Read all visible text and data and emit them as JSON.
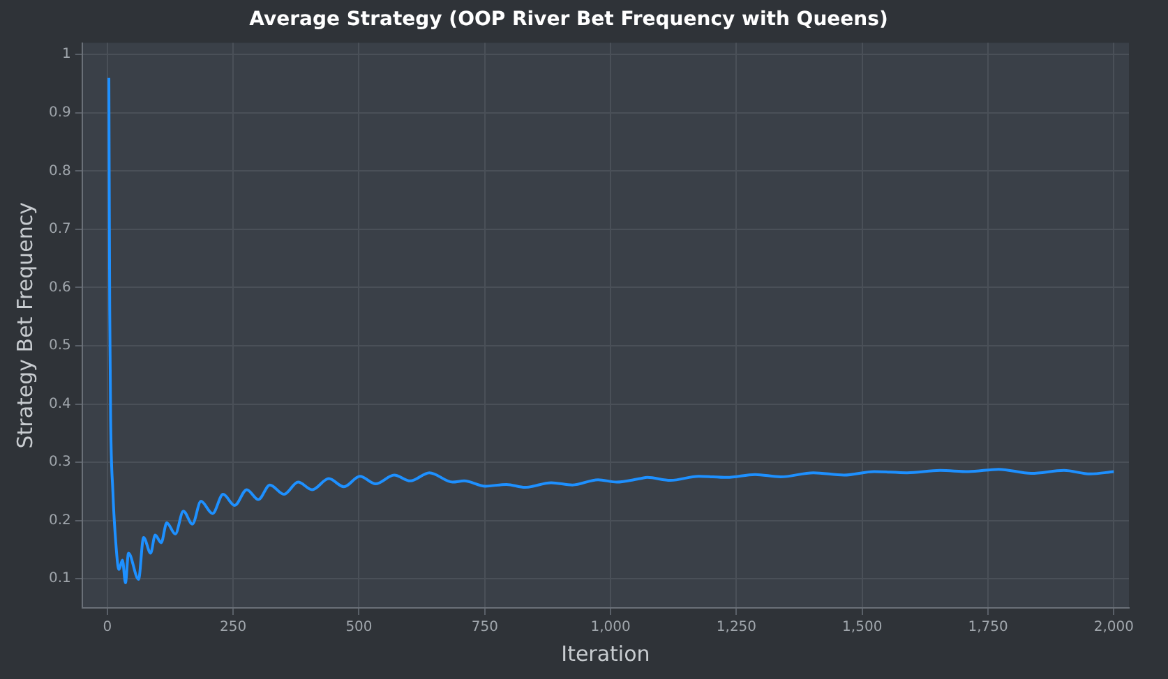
{
  "chart_data": {
    "type": "line",
    "title": "Average Strategy (OOP River Bet Frequency with Queens)",
    "xlabel": "Iteration",
    "ylabel": "Strategy Bet Frequency",
    "series": [
      {
        "color": "#1e90ff",
        "x": [
          3,
          4.7,
          6.5,
          11,
          16,
          23,
          30,
          36,
          42,
          62,
          72,
          86,
          95,
          107,
          118,
          135,
          151,
          169,
          186,
          209,
          230,
          253,
          277,
          300,
          323,
          351,
          379,
          407,
          440,
          470,
          502,
          533,
          570,
          602,
          640,
          686,
          709,
          751,
          793,
          830,
          882,
          924,
          975,
          1012,
          1059,
          1073,
          1119,
          1175,
          1231,
          1287,
          1338,
          1403,
          1464,
          1524,
          1589,
          1655,
          1711,
          1771,
          1836,
          1901,
          1953,
          2000
        ],
        "values": [
          0.96,
          0.561,
          0.374,
          0.249,
          0.171,
          0.116,
          0.132,
          0.093,
          0.144,
          0.099,
          0.171,
          0.144,
          0.175,
          0.162,
          0.196,
          0.177,
          0.216,
          0.194,
          0.233,
          0.212,
          0.245,
          0.226,
          0.253,
          0.236,
          0.261,
          0.245,
          0.266,
          0.253,
          0.272,
          0.258,
          0.276,
          0.263,
          0.278,
          0.268,
          0.282,
          0.266,
          0.268,
          0.259,
          0.262,
          0.257,
          0.265,
          0.261,
          0.27,
          0.266,
          0.272,
          0.274,
          0.269,
          0.276,
          0.274,
          0.279,
          0.275,
          0.282,
          0.278,
          0.284,
          0.282,
          0.286,
          0.284,
          0.288,
          0.281,
          0.286,
          0.28,
          0.284
        ]
      }
    ],
    "xlim": [
      -50,
      2030
    ],
    "ylim": [
      0.05,
      1.02
    ],
    "xticks": [
      0,
      250,
      500,
      750,
      {
        "value": 1000,
        "label": "1,000"
      },
      {
        "value": 1250,
        "label": "1,250"
      },
      {
        "value": 1500,
        "label": "1,500"
      },
      {
        "value": 1750,
        "label": "1,750"
      },
      {
        "value": 2000,
        "label": "2,000"
      }
    ],
    "yticks": [
      0.1,
      0.2,
      0.3,
      0.4,
      0.5,
      0.6,
      0.7,
      0.8,
      0.9,
      1
    ],
    "grid": true,
    "legend": false,
    "marker": "none",
    "line_style": "solid"
  }
}
